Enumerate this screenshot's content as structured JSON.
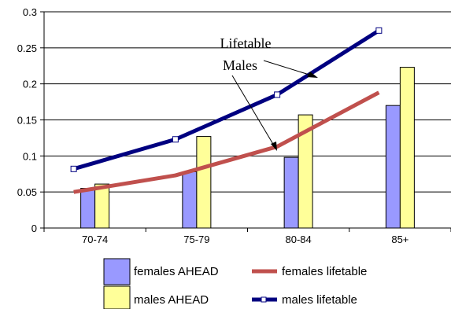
{
  "chart_data": {
    "type": "bar",
    "categories": [
      "70-74",
      "75-79",
      "80-84",
      "85+"
    ],
    "ylim": [
      0,
      0.3
    ],
    "yticks": [
      "0",
      "0.05",
      "0.1",
      "0.15",
      "0.2",
      "0.25",
      "0.3"
    ],
    "ytick_values": [
      0,
      0.05,
      0.1,
      0.15,
      0.2,
      0.25,
      0.3
    ],
    "grid": true,
    "legend_position": "bottom",
    "bar_series": [
      {
        "name": "females AHEAD",
        "values": [
          0.055,
          0.078,
          0.098,
          0.17
        ],
        "color": "#9999ff"
      },
      {
        "name": "males AHEAD",
        "values": [
          0.061,
          0.127,
          0.157,
          0.223
        ],
        "color": "#ffff99"
      }
    ],
    "line_series": [
      {
        "name": "females lifetable",
        "values": [
          0.05,
          0.073,
          0.113,
          0.188
        ],
        "color": "#c0504d",
        "markers": false
      },
      {
        "name": "males lifetable",
        "values": [
          0.082,
          0.123,
          0.185,
          0.274
        ],
        "color": "#000080",
        "markers": true
      }
    ],
    "annotation": {
      "line1": "Lifetable",
      "line2": "Males"
    }
  }
}
